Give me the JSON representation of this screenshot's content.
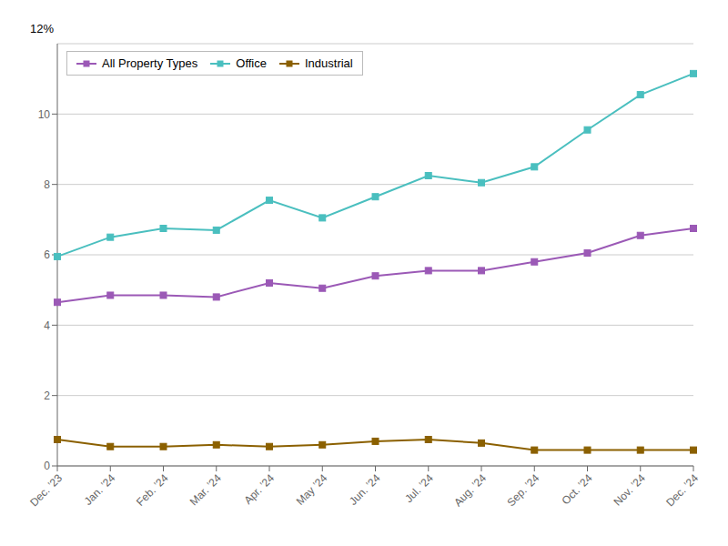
{
  "chart_data": {
    "type": "line",
    "annotations": [
      "12%"
    ],
    "categories": [
      "Dec. ’23",
      "Jan. ’24",
      "Feb. ’24",
      "Mar. ’24",
      "Apr. ’24",
      "May ’24",
      "Jun. ’24",
      "Jul. ’24",
      "Aug. ’24",
      "Sep. ’24",
      "Oct. ’24",
      "Nov. ’24",
      "Dec. ’24"
    ],
    "series": [
      {
        "name": "All Property Types",
        "color": "#9B59B6",
        "values": [
          4.65,
          4.85,
          4.85,
          4.8,
          5.2,
          5.05,
          5.4,
          5.55,
          5.55,
          5.8,
          6.05,
          6.55,
          6.75
        ]
      },
      {
        "name": "Office",
        "color": "#4ABFBF",
        "values": [
          5.95,
          6.5,
          6.75,
          6.7,
          7.55,
          7.05,
          7.65,
          8.25,
          8.05,
          8.5,
          9.55,
          10.55,
          11.15
        ]
      },
      {
        "name": "Industrial",
        "color": "#8B6000",
        "values": [
          0.75,
          0.55,
          0.55,
          0.6,
          0.55,
          0.6,
          0.7,
          0.75,
          0.65,
          0.45,
          0.45,
          0.45,
          0.45
        ]
      }
    ],
    "ylim": [
      0,
      12
    ],
    "yticks": [
      0,
      2,
      4,
      6,
      8,
      10
    ],
    "grid": true,
    "legend": "upper left",
    "marker": "square"
  }
}
